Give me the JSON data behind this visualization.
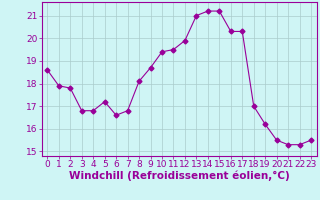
{
  "x": [
    0,
    1,
    2,
    3,
    4,
    5,
    6,
    7,
    8,
    9,
    10,
    11,
    12,
    13,
    14,
    15,
    16,
    17,
    18,
    19,
    20,
    21,
    22,
    23
  ],
  "y": [
    18.6,
    17.9,
    17.8,
    16.8,
    16.8,
    17.2,
    16.6,
    16.8,
    18.1,
    18.7,
    19.4,
    19.5,
    19.9,
    21.0,
    21.2,
    21.2,
    20.3,
    20.3,
    17.0,
    16.2,
    15.5,
    15.3,
    15.3,
    15.5
  ],
  "line_color": "#990099",
  "marker": "D",
  "marker_size": 2.5,
  "bg_color": "#cff5f5",
  "grid_color": "#aacccc",
  "xlabel": "Windchill (Refroidissement éolien,°C)",
  "xlabel_fontsize": 7.5,
  "ylim": [
    14.8,
    21.6
  ],
  "xlim": [
    -0.5,
    23.5
  ],
  "yticks": [
    15,
    16,
    17,
    18,
    19,
    20,
    21
  ],
  "xticks": [
    0,
    1,
    2,
    3,
    4,
    5,
    6,
    7,
    8,
    9,
    10,
    11,
    12,
    13,
    14,
    15,
    16,
    17,
    18,
    19,
    20,
    21,
    22,
    23
  ],
  "tick_fontsize": 6.5,
  "tick_color": "#990099",
  "spine_color": "#990099"
}
